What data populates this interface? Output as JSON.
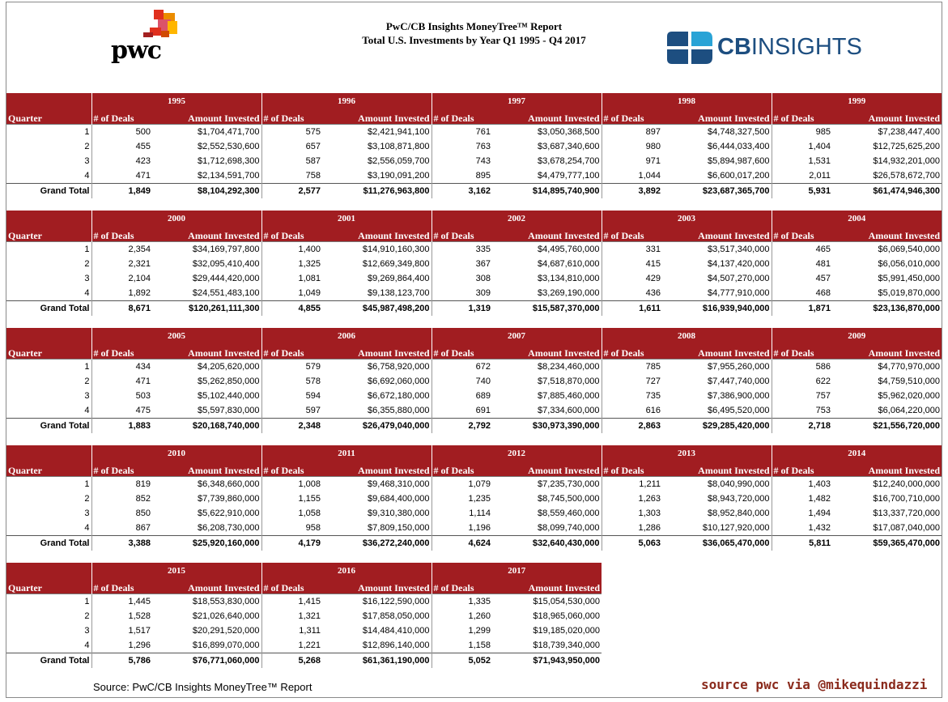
{
  "report": {
    "title_line1": "PwC/CB Insights MoneyTree™ Report",
    "title_line2": "Total U.S. Investments by Year Q1 1995 - Q4 2017",
    "pwc_logo_text": "pwc",
    "cb_logo_text_bold": "CB",
    "cb_logo_text": "INSIGHTS",
    "source_note": "Source:  PwC/CB Insights MoneyTree™ Report",
    "credit": "source pwc via @mikequindazzi"
  },
  "colors": {
    "header_red": "#a11d21",
    "cb_blue": "#1d4e80",
    "credit_brown": "#8a2a1c"
  },
  "labels": {
    "quarter": "Quarter",
    "deals": "# of Deals",
    "amount": "Amount Invested",
    "grand_total": "Grand Total"
  },
  "blocks": [
    {
      "years": [
        {
          "year": "1995",
          "rows": [
            [
              "500",
              "$1,704,471,700"
            ],
            [
              "455",
              "$2,552,530,600"
            ],
            [
              "423",
              "$1,712,698,300"
            ],
            [
              "471",
              "$2,134,591,700"
            ]
          ],
          "total": [
            "1,849",
            "$8,104,292,300"
          ]
        },
        {
          "year": "1996",
          "rows": [
            [
              "575",
              "$2,421,941,100"
            ],
            [
              "657",
              "$3,108,871,800"
            ],
            [
              "587",
              "$2,556,059,700"
            ],
            [
              "758",
              "$3,190,091,200"
            ]
          ],
          "total": [
            "2,577",
            "$11,276,963,800"
          ]
        },
        {
          "year": "1997",
          "rows": [
            [
              "761",
              "$3,050,368,500"
            ],
            [
              "763",
              "$3,687,340,600"
            ],
            [
              "743",
              "$3,678,254,700"
            ],
            [
              "895",
              "$4,479,777,100"
            ]
          ],
          "total": [
            "3,162",
            "$14,895,740,900"
          ]
        },
        {
          "year": "1998",
          "rows": [
            [
              "897",
              "$4,748,327,500"
            ],
            [
              "980",
              "$6,444,033,400"
            ],
            [
              "971",
              "$5,894,987,600"
            ],
            [
              "1,044",
              "$6,600,017,200"
            ]
          ],
          "total": [
            "3,892",
            "$23,687,365,700"
          ]
        },
        {
          "year": "1999",
          "rows": [
            [
              "985",
              "$7,238,447,400"
            ],
            [
              "1,404",
              "$12,725,625,200"
            ],
            [
              "1,531",
              "$14,932,201,000"
            ],
            [
              "2,011",
              "$26,578,672,700"
            ]
          ],
          "total": [
            "5,931",
            "$61,474,946,300"
          ]
        }
      ]
    },
    {
      "years": [
        {
          "year": "2000",
          "rows": [
            [
              "2,354",
              "$34,169,797,800"
            ],
            [
              "2,321",
              "$32,095,410,400"
            ],
            [
              "2,104",
              "$29,444,420,000"
            ],
            [
              "1,892",
              "$24,551,483,100"
            ]
          ],
          "total": [
            "8,671",
            "$120,261,111,300"
          ]
        },
        {
          "year": "2001",
          "rows": [
            [
              "1,400",
              "$14,910,160,300"
            ],
            [
              "1,325",
              "$12,669,349,800"
            ],
            [
              "1,081",
              "$9,269,864,400"
            ],
            [
              "1,049",
              "$9,138,123,700"
            ]
          ],
          "total": [
            "4,855",
            "$45,987,498,200"
          ]
        },
        {
          "year": "2002",
          "rows": [
            [
              "335",
              "$4,495,760,000"
            ],
            [
              "367",
              "$4,687,610,000"
            ],
            [
              "308",
              "$3,134,810,000"
            ],
            [
              "309",
              "$3,269,190,000"
            ]
          ],
          "total": [
            "1,319",
            "$15,587,370,000"
          ]
        },
        {
          "year": "2003",
          "rows": [
            [
              "331",
              "$3,517,340,000"
            ],
            [
              "415",
              "$4,137,420,000"
            ],
            [
              "429",
              "$4,507,270,000"
            ],
            [
              "436",
              "$4,777,910,000"
            ]
          ],
          "total": [
            "1,611",
            "$16,939,940,000"
          ]
        },
        {
          "year": "2004",
          "rows": [
            [
              "465",
              "$6,069,540,000"
            ],
            [
              "481",
              "$6,056,010,000"
            ],
            [
              "457",
              "$5,991,450,000"
            ],
            [
              "468",
              "$5,019,870,000"
            ]
          ],
          "total": [
            "1,871",
            "$23,136,870,000"
          ]
        }
      ]
    },
    {
      "years": [
        {
          "year": "2005",
          "rows": [
            [
              "434",
              "$4,205,620,000"
            ],
            [
              "471",
              "$5,262,850,000"
            ],
            [
              "503",
              "$5,102,440,000"
            ],
            [
              "475",
              "$5,597,830,000"
            ]
          ],
          "total": [
            "1,883",
            "$20,168,740,000"
          ]
        },
        {
          "year": "2006",
          "rows": [
            [
              "579",
              "$6,758,920,000"
            ],
            [
              "578",
              "$6,692,060,000"
            ],
            [
              "594",
              "$6,672,180,000"
            ],
            [
              "597",
              "$6,355,880,000"
            ]
          ],
          "total": [
            "2,348",
            "$26,479,040,000"
          ]
        },
        {
          "year": "2007",
          "rows": [
            [
              "672",
              "$8,234,460,000"
            ],
            [
              "740",
              "$7,518,870,000"
            ],
            [
              "689",
              "$7,885,460,000"
            ],
            [
              "691",
              "$7,334,600,000"
            ]
          ],
          "total": [
            "2,792",
            "$30,973,390,000"
          ]
        },
        {
          "year": "2008",
          "rows": [
            [
              "785",
              "$7,955,260,000"
            ],
            [
              "727",
              "$7,447,740,000"
            ],
            [
              "735",
              "$7,386,900,000"
            ],
            [
              "616",
              "$6,495,520,000"
            ]
          ],
          "total": [
            "2,863",
            "$29,285,420,000"
          ]
        },
        {
          "year": "2009",
          "rows": [
            [
              "586",
              "$4,770,970,000"
            ],
            [
              "622",
              "$4,759,510,000"
            ],
            [
              "757",
              "$5,962,020,000"
            ],
            [
              "753",
              "$6,064,220,000"
            ]
          ],
          "total": [
            "2,718",
            "$21,556,720,000"
          ]
        }
      ]
    },
    {
      "years": [
        {
          "year": "2010",
          "rows": [
            [
              "819",
              "$6,348,660,000"
            ],
            [
              "852",
              "$7,739,860,000"
            ],
            [
              "850",
              "$5,622,910,000"
            ],
            [
              "867",
              "$6,208,730,000"
            ]
          ],
          "total": [
            "3,388",
            "$25,920,160,000"
          ]
        },
        {
          "year": "2011",
          "rows": [
            [
              "1,008",
              "$9,468,310,000"
            ],
            [
              "1,155",
              "$9,684,400,000"
            ],
            [
              "1,058",
              "$9,310,380,000"
            ],
            [
              "958",
              "$7,809,150,000"
            ]
          ],
          "total": [
            "4,179",
            "$36,272,240,000"
          ]
        },
        {
          "year": "2012",
          "rows": [
            [
              "1,079",
              "$7,235,730,000"
            ],
            [
              "1,235",
              "$8,745,500,000"
            ],
            [
              "1,114",
              "$8,559,460,000"
            ],
            [
              "1,196",
              "$8,099,740,000"
            ]
          ],
          "total": [
            "4,624",
            "$32,640,430,000"
          ]
        },
        {
          "year": "2013",
          "rows": [
            [
              "1,211",
              "$8,040,990,000"
            ],
            [
              "1,263",
              "$8,943,720,000"
            ],
            [
              "1,303",
              "$8,952,840,000"
            ],
            [
              "1,286",
              "$10,127,920,000"
            ]
          ],
          "total": [
            "5,063",
            "$36,065,470,000"
          ]
        },
        {
          "year": "2014",
          "rows": [
            [
              "1,403",
              "$12,240,000,000"
            ],
            [
              "1,482",
              "$16,700,710,000"
            ],
            [
              "1,494",
              "$13,337,720,000"
            ],
            [
              "1,432",
              "$17,087,040,000"
            ]
          ],
          "total": [
            "5,811",
            "$59,365,470,000"
          ]
        }
      ]
    },
    {
      "years": [
        {
          "year": "2015",
          "rows": [
            [
              "1,445",
              "$18,553,830,000"
            ],
            [
              "1,528",
              "$21,026,640,000"
            ],
            [
              "1,517",
              "$20,291,520,000"
            ],
            [
              "1,296",
              "$16,899,070,000"
            ]
          ],
          "total": [
            "5,786",
            "$76,771,060,000"
          ]
        },
        {
          "year": "2016",
          "rows": [
            [
              "1,415",
              "$16,122,590,000"
            ],
            [
              "1,321",
              "$17,858,050,000"
            ],
            [
              "1,311",
              "$14,484,410,000"
            ],
            [
              "1,221",
              "$12,896,140,000"
            ]
          ],
          "total": [
            "5,268",
            "$61,361,190,000"
          ]
        },
        {
          "year": "2017",
          "rows": [
            [
              "1,335",
              "$15,054,530,000"
            ],
            [
              "1,260",
              "$18,965,060,000"
            ],
            [
              "1,299",
              "$19,185,020,000"
            ],
            [
              "1,158",
              "$18,739,340,000"
            ]
          ],
          "total": [
            "5,052",
            "$71,943,950,000"
          ]
        }
      ]
    }
  ],
  "quarters": [
    "1",
    "2",
    "3",
    "4"
  ]
}
